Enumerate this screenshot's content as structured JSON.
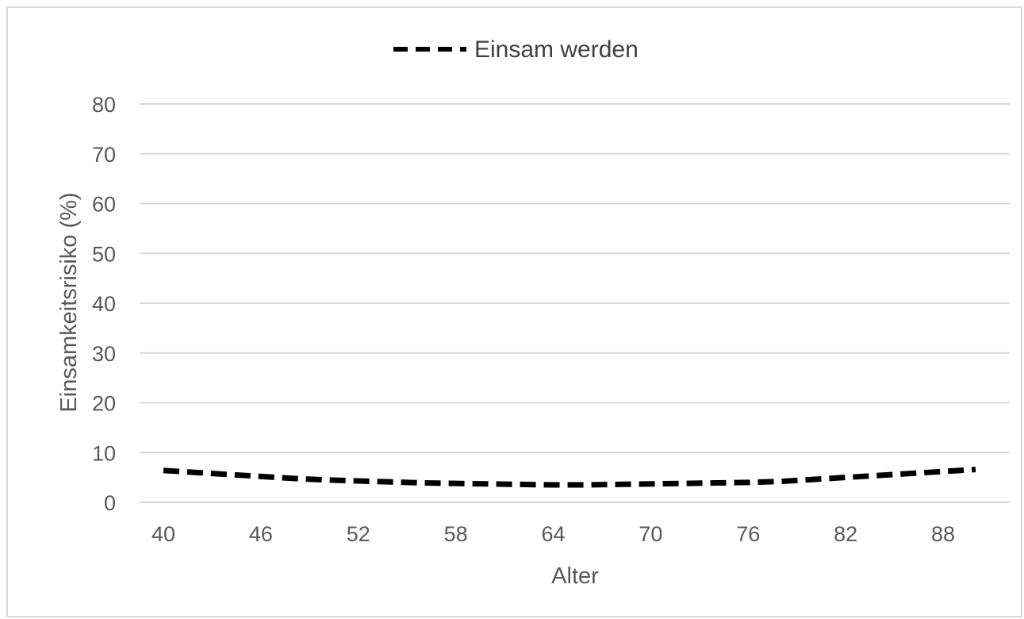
{
  "chart_data": {
    "type": "line",
    "title": "",
    "xlabel": "Alter",
    "ylabel": "Einsamkeitsrisiko (%)",
    "xlim": [
      40,
      90
    ],
    "ylim": [
      0,
      80
    ],
    "x_ticks": [
      40,
      46,
      52,
      58,
      64,
      70,
      76,
      82,
      88
    ],
    "y_ticks": [
      0,
      10,
      20,
      30,
      40,
      50,
      60,
      70,
      80
    ],
    "grid": true,
    "legend_position": "top",
    "series": [
      {
        "name": "Einsam werden",
        "style": "dashed",
        "color": "#000000",
        "x": [
          40,
          42,
          44,
          46,
          48,
          50,
          52,
          54,
          56,
          58,
          60,
          62,
          64,
          66,
          68,
          70,
          72,
          74,
          76,
          78,
          80,
          82,
          84,
          86,
          88,
          90
        ],
        "y": [
          6.4,
          6.0,
          5.6,
          5.2,
          4.8,
          4.5,
          4.3,
          4.1,
          3.9,
          3.8,
          3.7,
          3.6,
          3.5,
          3.5,
          3.6,
          3.7,
          3.8,
          3.9,
          4.0,
          4.2,
          4.6,
          5.0,
          5.4,
          5.8,
          6.2,
          6.6
        ]
      }
    ]
  },
  "colors": {
    "gridline": "#d9d9d9",
    "axis_text": "#595959",
    "series_line": "#000000"
  }
}
